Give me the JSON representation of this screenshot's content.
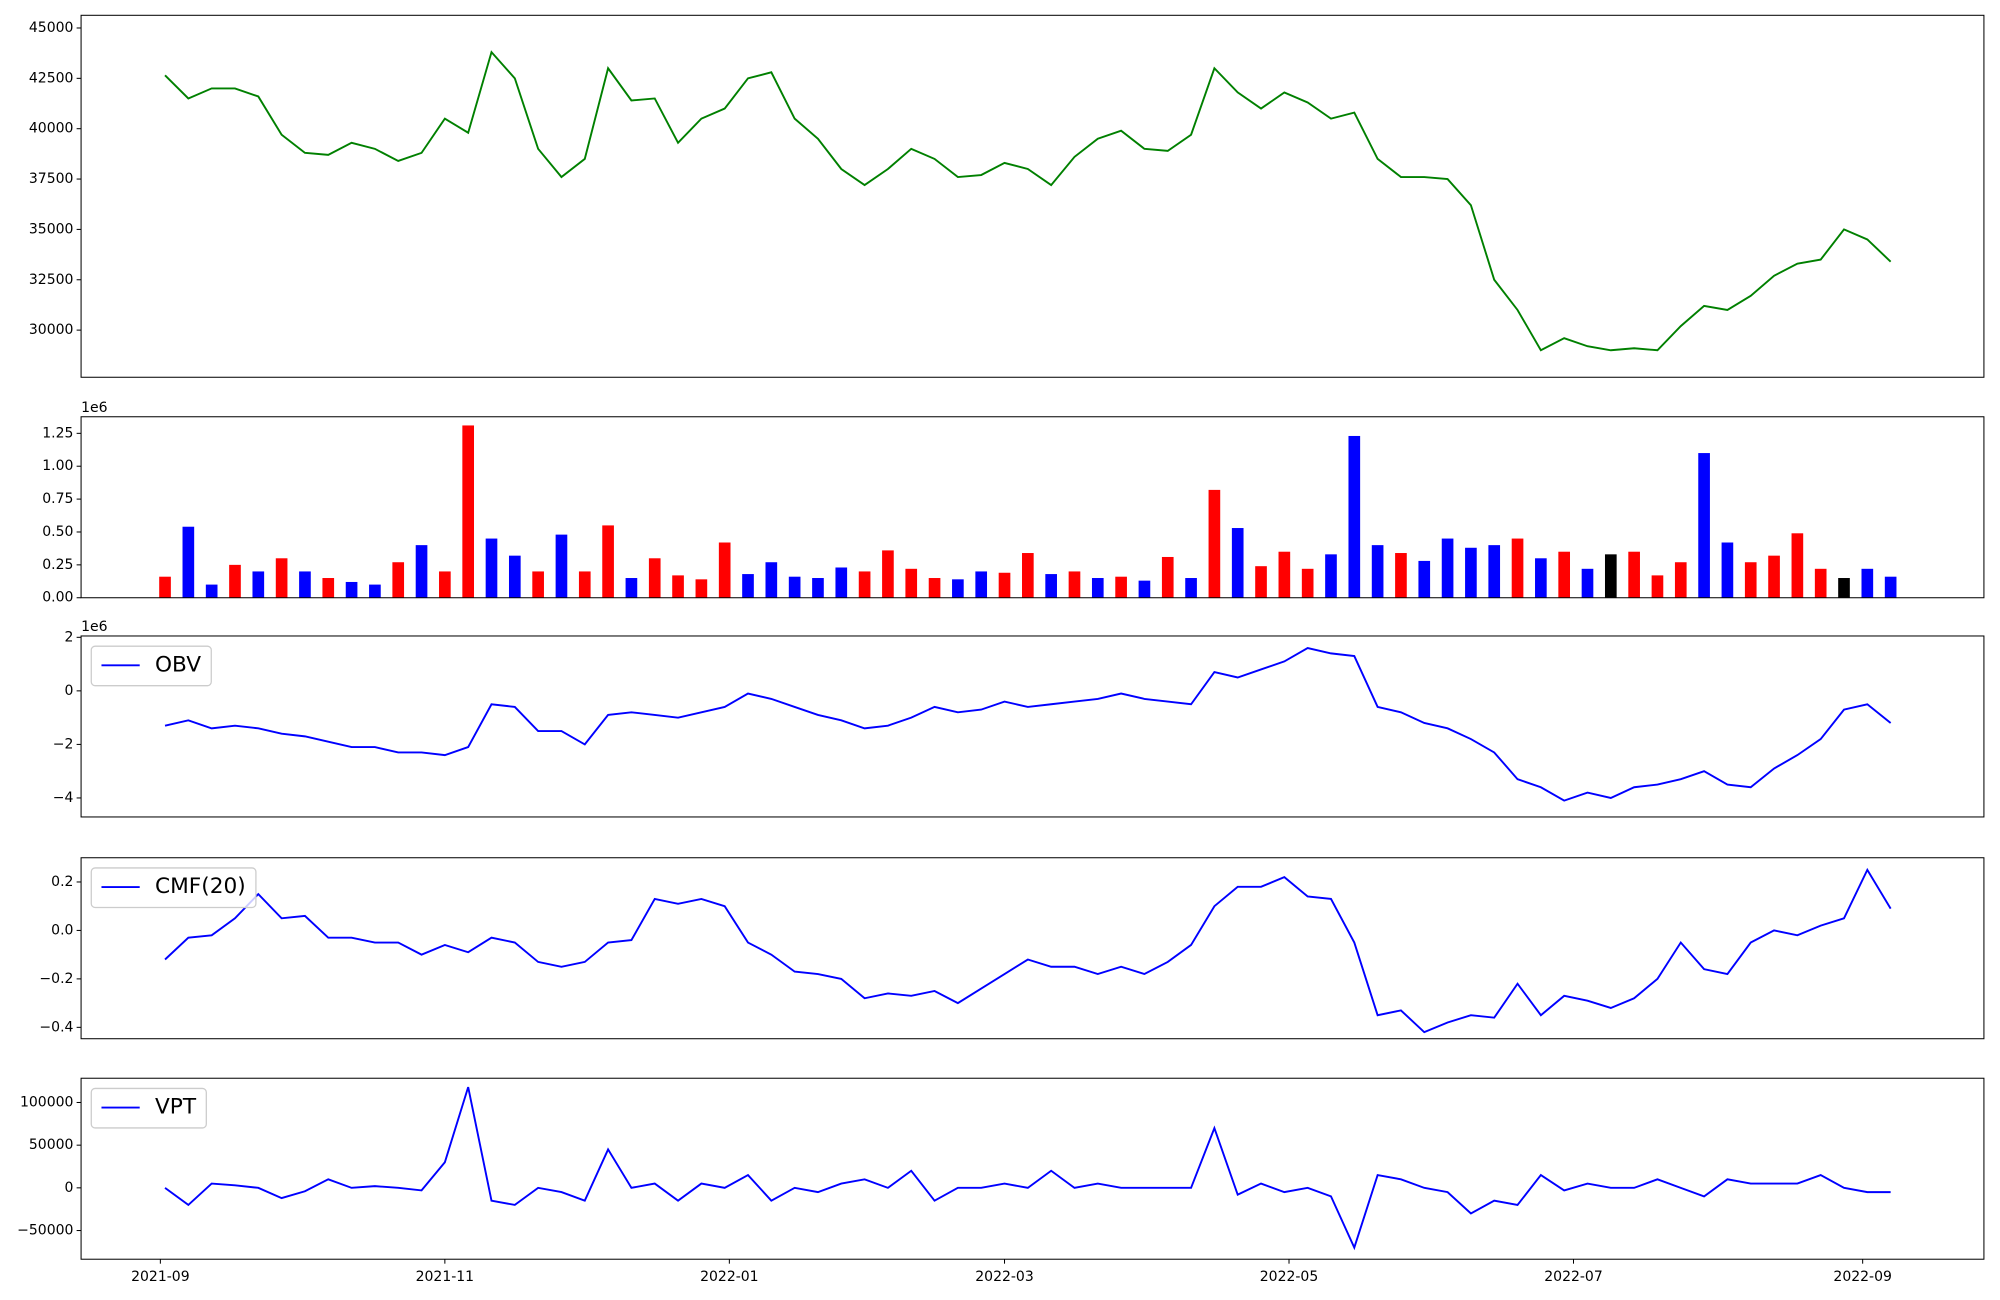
{
  "chart_data": [
    {
      "type": "line",
      "color": "green",
      "x": [
        "2021-09-02",
        "2021-09-07",
        "2021-09-12",
        "2021-09-17",
        "2021-09-22",
        "2021-09-27",
        "2021-10-02",
        "2021-10-07",
        "2021-10-12",
        "2021-10-17",
        "2021-10-22",
        "2021-10-27",
        "2021-11-01",
        "2021-11-06",
        "2021-11-11",
        "2021-11-16",
        "2021-11-21",
        "2021-11-26",
        "2021-12-01",
        "2021-12-06",
        "2021-12-11",
        "2021-12-16",
        "2021-12-21",
        "2021-12-26",
        "2021-12-31",
        "2022-01-05",
        "2022-01-10",
        "2022-01-15",
        "2022-01-20",
        "2022-01-25",
        "2022-01-30",
        "2022-02-04",
        "2022-02-09",
        "2022-02-14",
        "2022-02-19",
        "2022-02-24",
        "2022-03-01",
        "2022-03-06",
        "2022-03-11",
        "2022-03-16",
        "2022-03-21",
        "2022-03-26",
        "2022-03-31",
        "2022-04-05",
        "2022-04-10",
        "2022-04-15",
        "2022-04-20",
        "2022-04-25",
        "2022-04-30",
        "2022-05-05",
        "2022-05-10",
        "2022-05-15",
        "2022-05-20",
        "2022-05-25",
        "2022-05-30",
        "2022-06-04",
        "2022-06-09",
        "2022-06-14",
        "2022-06-19",
        "2022-06-24",
        "2022-06-29",
        "2022-07-04",
        "2022-07-09",
        "2022-07-14",
        "2022-07-19",
        "2022-07-24",
        "2022-07-29",
        "2022-08-03",
        "2022-08-08",
        "2022-08-13",
        "2022-08-18",
        "2022-08-23",
        "2022-08-28",
        "2022-09-02",
        "2022-09-07"
      ],
      "values": [
        42650,
        41500,
        42000,
        42000,
        41600,
        39700,
        38800,
        38700,
        39300,
        39000,
        38400,
        38800,
        40500,
        39800,
        43800,
        42500,
        39000,
        37600,
        38500,
        43000,
        41400,
        41500,
        39300,
        40500,
        41000,
        42500,
        42800,
        40500,
        39500,
        38000,
        37200,
        38000,
        39000,
        38500,
        37600,
        37700,
        38300,
        38000,
        37200,
        38600,
        39500,
        39900,
        39000,
        38900,
        39700,
        43000,
        41800,
        41000,
        41800,
        41300,
        40500,
        40800,
        38500,
        37600,
        37600,
        37500,
        36200,
        32500,
        31000,
        29000,
        29600,
        29200,
        29000,
        29100,
        29000,
        30200,
        31200,
        31000,
        31700,
        32700,
        33300,
        33500,
        35000,
        34500,
        33400
      ],
      "xlim": [
        "2021-08-15",
        "2022-09-27"
      ],
      "ylim": [
        27660,
        45630
      ],
      "yticks": [
        30000,
        32500,
        35000,
        37500,
        40000,
        42500,
        45000
      ]
    },
    {
      "type": "bar",
      "offset_label": "1e6",
      "x": [
        "2021-09-02",
        "2021-09-07",
        "2021-09-12",
        "2021-09-17",
        "2021-09-22",
        "2021-09-27",
        "2021-10-02",
        "2021-10-07",
        "2021-10-12",
        "2021-10-17",
        "2021-10-22",
        "2021-10-27",
        "2021-11-01",
        "2021-11-06",
        "2021-11-11",
        "2021-11-16",
        "2021-11-21",
        "2021-11-26",
        "2021-12-01",
        "2021-12-06",
        "2021-12-11",
        "2021-12-16",
        "2021-12-21",
        "2021-12-26",
        "2021-12-31",
        "2022-01-05",
        "2022-01-10",
        "2022-01-15",
        "2022-01-20",
        "2022-01-25",
        "2022-01-30",
        "2022-02-04",
        "2022-02-09",
        "2022-02-14",
        "2022-02-19",
        "2022-02-24",
        "2022-03-01",
        "2022-03-06",
        "2022-03-11",
        "2022-03-16",
        "2022-03-21",
        "2022-03-26",
        "2022-03-31",
        "2022-04-05",
        "2022-04-10",
        "2022-04-15",
        "2022-04-20",
        "2022-04-25",
        "2022-04-30",
        "2022-05-05",
        "2022-05-10",
        "2022-05-15",
        "2022-05-20",
        "2022-05-25",
        "2022-05-30",
        "2022-06-04",
        "2022-06-09",
        "2022-06-14",
        "2022-06-19",
        "2022-06-24",
        "2022-06-29",
        "2022-07-04",
        "2022-07-09",
        "2022-07-14",
        "2022-07-19",
        "2022-07-24",
        "2022-07-29",
        "2022-08-03",
        "2022-08-08",
        "2022-08-13",
        "2022-08-18",
        "2022-08-23",
        "2022-08-28",
        "2022-09-02",
        "2022-09-07"
      ],
      "values": [
        0.16,
        0.54,
        0.1,
        0.25,
        0.2,
        0.3,
        0.2,
        0.15,
        0.12,
        0.1,
        0.27,
        0.4,
        0.2,
        1.31,
        0.45,
        0.32,
        0.2,
        0.48,
        0.2,
        0.55,
        0.15,
        0.3,
        0.17,
        0.14,
        0.42,
        0.18,
        0.27,
        0.16,
        0.15,
        0.23,
        0.2,
        0.36,
        0.22,
        0.15,
        0.14,
        0.2,
        0.19,
        0.34,
        0.18,
        0.2,
        0.15,
        0.16,
        0.13,
        0.31,
        0.15,
        0.82,
        0.53,
        0.24,
        0.35,
        0.22,
        0.33,
        1.23,
        0.4,
        0.34,
        0.28,
        0.45,
        0.38,
        0.4,
        0.45,
        0.3,
        0.35,
        0.22,
        0.33,
        0.35,
        0.17,
        0.27,
        1.1,
        0.42,
        0.27,
        0.32,
        0.49,
        0.22,
        0.15,
        0.22,
        0.16
      ],
      "bar_colors": [
        "red",
        "blue",
        "blue",
        "red",
        "blue",
        "red",
        "blue",
        "red",
        "blue",
        "blue",
        "red",
        "blue",
        "red",
        "red",
        "blue",
        "blue",
        "red",
        "blue",
        "red",
        "red",
        "blue",
        "red",
        "red",
        "red",
        "red",
        "blue",
        "blue",
        "blue",
        "blue",
        "blue",
        "red",
        "red",
        "red",
        "red",
        "blue",
        "blue",
        "red",
        "red",
        "blue",
        "red",
        "blue",
        "red",
        "blue",
        "red",
        "blue",
        "red",
        "blue",
        "red",
        "red",
        "red",
        "blue",
        "blue",
        "blue",
        "red",
        "blue",
        "blue",
        "blue",
        "blue",
        "red",
        "blue",
        "red",
        "blue",
        "black",
        "red",
        "red",
        "red",
        "blue",
        "blue",
        "red",
        "red",
        "red",
        "red",
        "black",
        "blue",
        "blue"
      ],
      "xlim": [
        "2021-08-15",
        "2022-09-27"
      ],
      "ylim": [
        0,
        1.376
      ],
      "yticks": [
        {
          "value": 0,
          "label": "0.00"
        },
        0.25,
        {
          "value": 0.5,
          "label": "0.50"
        },
        0.75,
        {
          "value": 1,
          "label": "1.00"
        },
        1.25
      ]
    },
    {
      "type": "line",
      "offset_label": "1e6",
      "legend": "upper left",
      "x": [
        "2021-09-02",
        "2021-09-07",
        "2021-09-12",
        "2021-09-17",
        "2021-09-22",
        "2021-09-27",
        "2021-10-02",
        "2021-10-07",
        "2021-10-12",
        "2021-10-17",
        "2021-10-22",
        "2021-10-27",
        "2021-11-01",
        "2021-11-06",
        "2021-11-11",
        "2021-11-16",
        "2021-11-21",
        "2021-11-26",
        "2021-12-01",
        "2021-12-06",
        "2021-12-11",
        "2021-12-16",
        "2021-12-21",
        "2021-12-26",
        "2021-12-31",
        "2022-01-05",
        "2022-01-10",
        "2022-01-15",
        "2022-01-20",
        "2022-01-25",
        "2022-01-30",
        "2022-02-04",
        "2022-02-09",
        "2022-02-14",
        "2022-02-19",
        "2022-02-24",
        "2022-03-01",
        "2022-03-06",
        "2022-03-11",
        "2022-03-16",
        "2022-03-21",
        "2022-03-26",
        "2022-03-31",
        "2022-04-05",
        "2022-04-10",
        "2022-04-15",
        "2022-04-20",
        "2022-04-25",
        "2022-04-30",
        "2022-05-05",
        "2022-05-10",
        "2022-05-15",
        "2022-05-20",
        "2022-05-25",
        "2022-05-30",
        "2022-06-04",
        "2022-06-09",
        "2022-06-14",
        "2022-06-19",
        "2022-06-24",
        "2022-06-29",
        "2022-07-04",
        "2022-07-09",
        "2022-07-14",
        "2022-07-19",
        "2022-07-24",
        "2022-07-29",
        "2022-08-03",
        "2022-08-08",
        "2022-08-13",
        "2022-08-18",
        "2022-08-23",
        "2022-08-28",
        "2022-09-02",
        "2022-09-07"
      ],
      "series": [
        {
          "name": "OBV",
          "color": "blue",
          "values": [
            -1.3,
            -1.1,
            -1.4,
            -1.3,
            -1.4,
            -1.6,
            -1.7,
            -1.9,
            -2.1,
            -2.1,
            -2.3,
            -2.3,
            -2.4,
            -2.1,
            -0.5,
            -0.6,
            -1.5,
            -1.5,
            -2.0,
            -0.9,
            -0.8,
            -0.9,
            -1.0,
            -0.8,
            -0.6,
            -0.1,
            -0.3,
            -0.6,
            -0.9,
            -1.1,
            -1.4,
            -1.3,
            -1.0,
            -0.6,
            -0.8,
            -0.7,
            -0.4,
            -0.6,
            -0.5,
            -0.4,
            -0.3,
            -0.1,
            -0.3,
            -0.4,
            -0.5,
            0.7,
            0.5,
            0.8,
            1.1,
            1.6,
            1.4,
            1.3,
            -0.6,
            -0.8,
            -1.2,
            -1.4,
            -1.8,
            -2.3,
            -3.3,
            -3.6,
            -4.1,
            -3.8,
            -4.0,
            -3.6,
            -3.5,
            -3.3,
            -3.0,
            -3.5,
            -3.6,
            -2.9,
            -2.4,
            -1.8,
            -0.7,
            -0.5,
            -1.2
          ]
        }
      ],
      "xlim": [
        "2021-08-15",
        "2022-09-27"
      ],
      "ylim": [
        -4.71,
        2.05
      ],
      "yticks": [
        {
          "value": -4,
          "label": "−4"
        },
        {
          "value": -2,
          "label": "−2"
        },
        0,
        2
      ]
    },
    {
      "type": "line",
      "legend": "upper left",
      "x": [
        "2021-09-02",
        "2021-09-07",
        "2021-09-12",
        "2021-09-17",
        "2021-09-22",
        "2021-09-27",
        "2021-10-02",
        "2021-10-07",
        "2021-10-12",
        "2021-10-17",
        "2021-10-22",
        "2021-10-27",
        "2021-11-01",
        "2021-11-06",
        "2021-11-11",
        "2021-11-16",
        "2021-11-21",
        "2021-11-26",
        "2021-12-01",
        "2021-12-06",
        "2021-12-11",
        "2021-12-16",
        "2021-12-21",
        "2021-12-26",
        "2021-12-31",
        "2022-01-05",
        "2022-01-10",
        "2022-01-15",
        "2022-01-20",
        "2022-01-25",
        "2022-01-30",
        "2022-02-04",
        "2022-02-09",
        "2022-02-14",
        "2022-02-19",
        "2022-02-24",
        "2022-03-01",
        "2022-03-06",
        "2022-03-11",
        "2022-03-16",
        "2022-03-21",
        "2022-03-26",
        "2022-03-31",
        "2022-04-05",
        "2022-04-10",
        "2022-04-15",
        "2022-04-20",
        "2022-04-25",
        "2022-04-30",
        "2022-05-05",
        "2022-05-10",
        "2022-05-15",
        "2022-05-20",
        "2022-05-25",
        "2022-05-30",
        "2022-06-04",
        "2022-06-09",
        "2022-06-14",
        "2022-06-19",
        "2022-06-24",
        "2022-06-29",
        "2022-07-04",
        "2022-07-09",
        "2022-07-14",
        "2022-07-19",
        "2022-07-24",
        "2022-07-29",
        "2022-08-03",
        "2022-08-08",
        "2022-08-13",
        "2022-08-18",
        "2022-08-23",
        "2022-08-28",
        "2022-09-02",
        "2022-09-07"
      ],
      "series": [
        {
          "name": "CMF(20)",
          "color": "blue",
          "values": [
            -0.12,
            -0.03,
            -0.02,
            0.05,
            0.15,
            0.05,
            0.06,
            -0.03,
            -0.03,
            -0.05,
            -0.05,
            -0.1,
            -0.06,
            -0.09,
            -0.03,
            -0.05,
            -0.13,
            -0.15,
            -0.13,
            -0.05,
            -0.04,
            0.13,
            0.11,
            0.13,
            0.1,
            -0.05,
            -0.1,
            -0.17,
            -0.18,
            -0.2,
            -0.28,
            -0.26,
            -0.27,
            -0.25,
            -0.3,
            -0.24,
            -0.18,
            -0.12,
            -0.15,
            -0.15,
            -0.18,
            -0.15,
            -0.18,
            -0.13,
            -0.06,
            0.1,
            0.18,
            0.18,
            0.22,
            0.14,
            0.13,
            -0.05,
            -0.35,
            -0.33,
            -0.42,
            -0.38,
            -0.35,
            -0.36,
            -0.22,
            -0.35,
            -0.27,
            -0.29,
            -0.32,
            -0.28,
            -0.2,
            -0.05,
            -0.16,
            -0.18,
            -0.05,
            0.0,
            -0.02,
            0.02,
            0.05,
            0.25,
            0.09
          ]
        }
      ],
      "xlim": [
        "2021-08-15",
        "2022-09-27"
      ],
      "ylim": [
        -0.447,
        0.3
      ],
      "yticks": [
        {
          "value": -0.4,
          "label": "−0.4"
        },
        {
          "value": -0.2,
          "label": "−0.2"
        },
        {
          "value": 0,
          "label": "0.0"
        },
        0.2
      ]
    },
    {
      "type": "line",
      "legend": "upper left",
      "x": [
        "2021-09-02",
        "2021-09-07",
        "2021-09-12",
        "2021-09-17",
        "2021-09-22",
        "2021-09-27",
        "2021-10-02",
        "2021-10-07",
        "2021-10-12",
        "2021-10-17",
        "2021-10-22",
        "2021-10-27",
        "2021-11-01",
        "2021-11-06",
        "2021-11-11",
        "2021-11-16",
        "2021-11-21",
        "2021-11-26",
        "2021-12-01",
        "2021-12-06",
        "2021-12-11",
        "2021-12-16",
        "2021-12-21",
        "2021-12-26",
        "2021-12-31",
        "2022-01-05",
        "2022-01-10",
        "2022-01-15",
        "2022-01-20",
        "2022-01-25",
        "2022-01-30",
        "2022-02-04",
        "2022-02-09",
        "2022-02-14",
        "2022-02-19",
        "2022-02-24",
        "2022-03-01",
        "2022-03-06",
        "2022-03-11",
        "2022-03-16",
        "2022-03-21",
        "2022-03-26",
        "2022-03-31",
        "2022-04-05",
        "2022-04-10",
        "2022-04-15",
        "2022-04-20",
        "2022-04-25",
        "2022-04-30",
        "2022-05-05",
        "2022-05-10",
        "2022-05-15",
        "2022-05-20",
        "2022-05-25",
        "2022-05-30",
        "2022-06-04",
        "2022-06-09",
        "2022-06-14",
        "2022-06-19",
        "2022-06-24",
        "2022-06-29",
        "2022-07-04",
        "2022-07-09",
        "2022-07-14",
        "2022-07-19",
        "2022-07-24",
        "2022-07-29",
        "2022-08-03",
        "2022-08-08",
        "2022-08-13",
        "2022-08-18",
        "2022-08-23",
        "2022-08-28",
        "2022-09-02",
        "2022-09-07"
      ],
      "series": [
        {
          "name": "VPT",
          "color": "blue",
          "values": [
            0,
            -20000,
            5000,
            3000,
            0,
            -12000,
            -4000,
            10000,
            0,
            2000,
            0,
            -3000,
            30000,
            118000,
            -15000,
            -20000,
            0,
            -5000,
            -15000,
            45000,
            0,
            5000,
            -15000,
            5000,
            0,
            15000,
            -15000,
            0,
            -5000,
            5000,
            10000,
            0,
            20000,
            -15000,
            0,
            0,
            5000,
            0,
            20000,
            0,
            5000,
            0,
            0,
            0,
            0,
            70000,
            -8000,
            5000,
            -5000,
            0,
            -10000,
            -70000,
            15000,
            10000,
            0,
            -5000,
            -30000,
            -15000,
            -20000,
            15000,
            -3000,
            5000,
            0,
            0,
            10000,
            0,
            -10000,
            10000,
            5000,
            5000,
            5000,
            15000,
            0,
            -5000,
            -5000
          ]
        }
      ],
      "xlim": [
        "2021-08-15",
        "2022-09-27"
      ],
      "ylim": [
        -83600,
        128400
      ],
      "yticks": [
        {
          "value": -50000,
          "label": "−50000"
        },
        0,
        50000,
        100000
      ],
      "xticks": [
        {
          "value": "2021-09-01",
          "label": "2021-09"
        },
        {
          "value": "2021-11-01",
          "label": "2021-11"
        },
        {
          "value": "2022-01-01",
          "label": "2022-01"
        },
        {
          "value": "2022-03-01",
          "label": "2022-03"
        },
        {
          "value": "2022-05-01",
          "label": "2022-05"
        },
        {
          "value": "2022-07-01",
          "label": "2022-07"
        },
        {
          "value": "2022-09-01",
          "label": "2022-09"
        }
      ]
    }
  ]
}
